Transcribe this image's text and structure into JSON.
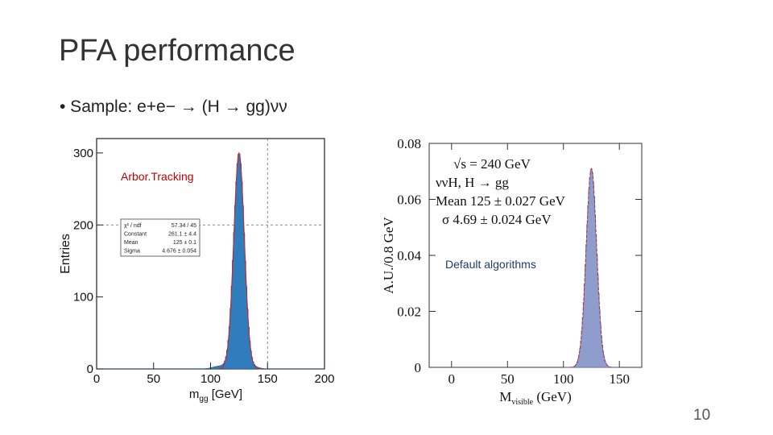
{
  "slide": {
    "title": "PFA performance",
    "bullet_prefix": "• Sample:",
    "bullet_formula": "e+e− → (H → gg)νν",
    "page_number": "10"
  },
  "chart_data": [
    {
      "type": "histogram",
      "label": "Arbor.Tracking",
      "ylabel": "Entries",
      "xlabel": "m",
      "xlabel_sub": "gg",
      "xlabel_unit": "[GeV]",
      "xlim": [
        0,
        200
      ],
      "ylim": [
        0,
        320
      ],
      "xticks": [
        "0",
        "50",
        "100",
        "150",
        "200"
      ],
      "yticks": [
        "0",
        "100",
        "200",
        "300"
      ],
      "dashed_x": 150,
      "dashed_y": 200,
      "peak_mean": 125,
      "peak_sigma": 4.676,
      "peak_height": 300,
      "stats_box": [
        {
          "key": "χ² / ndf",
          "value": "57.34 / 45"
        },
        {
          "key": "Constant",
          "value": "261.1 ± 4.4"
        },
        {
          "key": "Mean",
          "value": "125 ± 0.1"
        },
        {
          "key": "Sigma",
          "value": "4.676 ± 0.054"
        }
      ],
      "colors": {
        "fill": "#2f7dbd",
        "fit": "#cc2222"
      }
    },
    {
      "type": "histogram",
      "label": "Default algorithms",
      "ylabel": "A.U./0.8 GeV",
      "xlabel": "M",
      "xlabel_sub": "visible",
      "xlabel_unit": "(GeV)",
      "xlim": [
        -20,
        170
      ],
      "ylim": [
        0,
        0.08
      ],
      "xticks": [
        "0",
        "50",
        "100",
        "150"
      ],
      "xtick_values": [
        0,
        50,
        100,
        150
      ],
      "yticks": [
        "0",
        "0.02",
        "0.04",
        "0.06",
        "0.08"
      ],
      "peak_mean": 125,
      "peak_sigma": 4.69,
      "peak_height": 0.071,
      "legend": {
        "sqrt_s": "√s = 240 GeV",
        "process": "ννH, H → gg",
        "mean": "Mean 125 ± 0.027 GeV",
        "sigma": "σ 4.69 ± 0.024 GeV"
      },
      "colors": {
        "fill": "#8f9dcc",
        "fit": "#b03030"
      }
    }
  ]
}
